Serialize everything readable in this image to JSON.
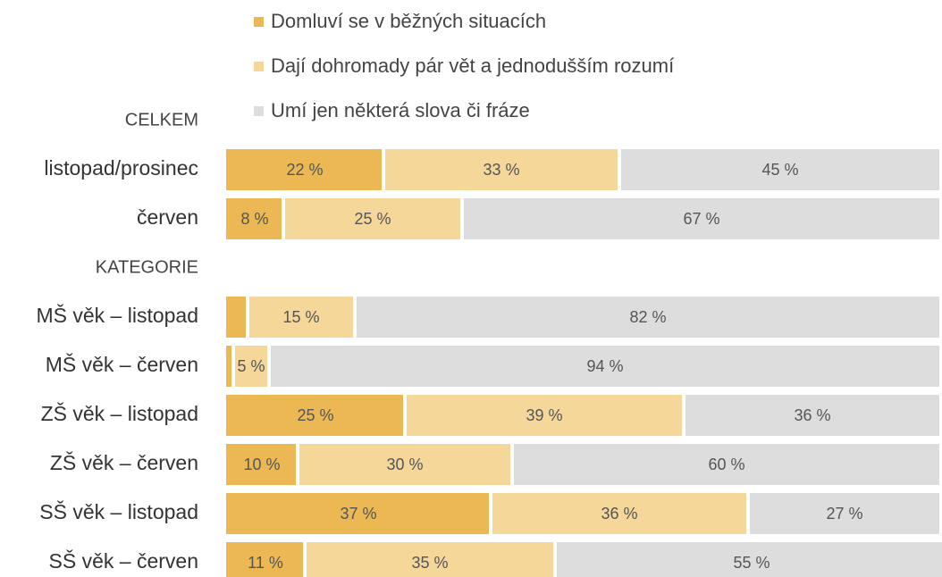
{
  "chart_data": {
    "type": "stacked-bar-horizontal",
    "categories": [
      "CELKEM",
      "listopad/prosinec",
      "červen",
      "KATEGORIE",
      "MŠ věk – listopad",
      "MŠ věk – červen",
      "ZŠ věk – listopad",
      "ZŠ věk – červen",
      "SŠ věk – listopad",
      "SŠ věk – červen"
    ],
    "series": [
      {
        "name": "Domluví se v běžných situacích",
        "color": "#ebb853",
        "values": [
          null,
          22,
          8,
          null,
          3,
          1,
          25,
          10,
          37,
          11
        ],
        "value_labels": [
          null,
          "22 %",
          "8 %",
          null,
          null,
          null,
          "25 %",
          "10 %",
          "37 %",
          "11 %"
        ]
      },
      {
        "name": "Dají dohromady pár vět a jednodušším rozumí",
        "color": "#f5d79a",
        "values": [
          null,
          33,
          25,
          null,
          15,
          5,
          39,
          30,
          36,
          35
        ],
        "value_labels": [
          null,
          "33 %",
          "25 %",
          null,
          "15 %",
          "5 %",
          "39 %",
          "30 %",
          "36 %",
          "35 %"
        ]
      },
      {
        "name": "Umí jen některá slova či fráze",
        "color": "#dddddd",
        "values": [
          null,
          45,
          67,
          null,
          82,
          94,
          36,
          60,
          27,
          55
        ],
        "value_labels": [
          null,
          "45 %",
          "67 %",
          null,
          "82 %",
          "94 %",
          "36 %",
          "60 %",
          "27 %",
          "55 %"
        ]
      }
    ],
    "xlim": [
      0,
      100
    ]
  }
}
